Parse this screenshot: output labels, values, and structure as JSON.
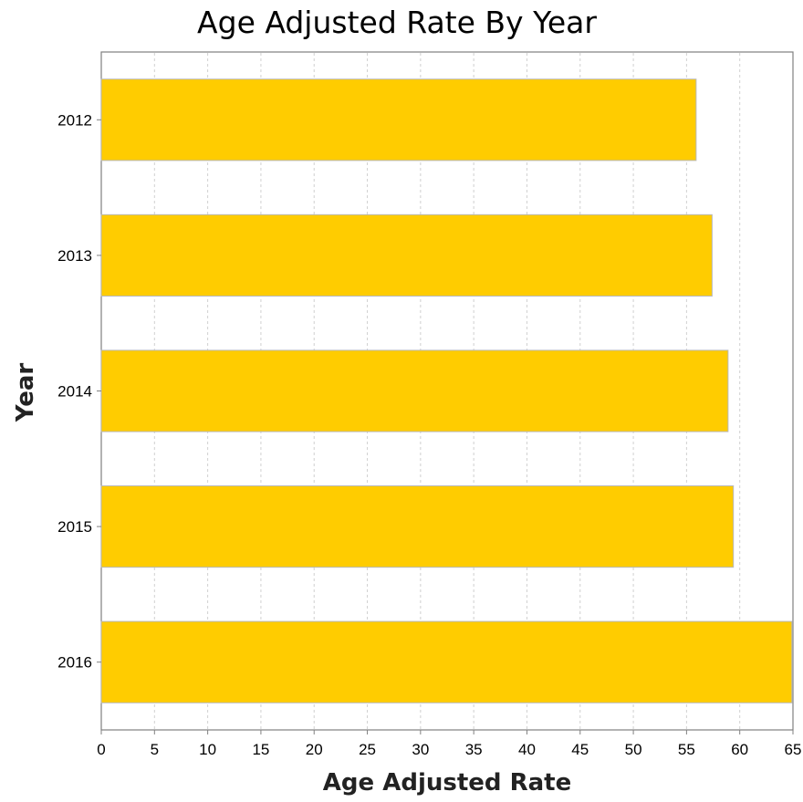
{
  "chart_data": {
    "type": "bar",
    "orientation": "horizontal",
    "title": "Age Adjusted Rate By Year",
    "xlabel": "Age Adjusted Rate",
    "ylabel": "Year",
    "categories": [
      "2012",
      "2013",
      "2014",
      "2015",
      "2016"
    ],
    "values": [
      55.9,
      57.4,
      58.9,
      59.4,
      64.9
    ],
    "xlim": [
      0,
      65
    ],
    "xticks": [
      "0",
      "5",
      "10",
      "15",
      "20",
      "25",
      "30",
      "35",
      "40",
      "45",
      "50",
      "55",
      "60",
      "65"
    ],
    "grid": "vertical dashed",
    "legend": "none",
    "bar_color": "#FFCC00"
  }
}
